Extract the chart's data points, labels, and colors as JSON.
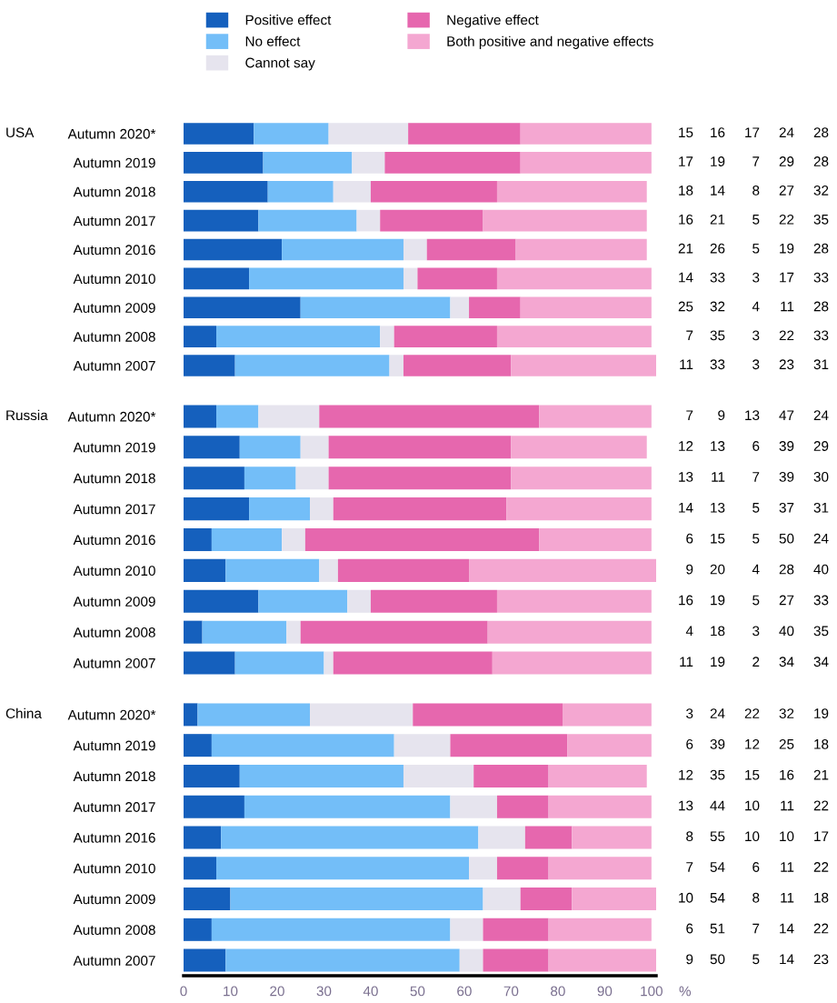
{
  "chart_data": [
    {
      "type": "bar",
      "title": "USA",
      "orientation": "horizontal",
      "stacked": true,
      "data_labels": true,
      "legend": "top",
      "tick_labels": "y",
      "categories": [
        "Autumn 2020*",
        "Autumn 2019",
        "Autumn 2018",
        "Autumn 2017",
        "Autumn 2016",
        "Autumn 2010",
        "Autumn 2009",
        "Autumn 2008",
        "Autumn 2007"
      ],
      "xlim": [
        0,
        101
      ],
      "xticks": [
        0,
        10,
        20,
        30,
        40,
        50,
        60,
        70,
        80,
        90,
        100
      ],
      "series": [
        {
          "name": "Positive effect",
          "color": "#1560bd",
          "values": [
            15,
            17,
            18,
            16,
            21,
            14,
            25,
            7,
            11
          ]
        },
        {
          "name": "No effect",
          "color": "#73bef8",
          "values": [
            16,
            19,
            14,
            21,
            26,
            33,
            32,
            35,
            33
          ]
        },
        {
          "name": "Cannot say",
          "color": "#e6e4ee",
          "values": [
            17,
            7,
            8,
            5,
            5,
            3,
            4,
            3,
            3
          ]
        },
        {
          "name": "Negative effect",
          "color": "#e667ae",
          "values": [
            24,
            29,
            27,
            22,
            19,
            17,
            11,
            22,
            23
          ]
        },
        {
          "name": "Both positive and negative effects",
          "color": "#f4a7d1",
          "values": [
            28,
            28,
            32,
            35,
            28,
            33,
            28,
            33,
            31
          ]
        }
      ]
    },
    {
      "type": "bar",
      "title": "Russia",
      "orientation": "horizontal",
      "stacked": true,
      "data_labels": true,
      "tick_labels": "y",
      "categories": [
        "Autumn 2020*",
        "Autumn 2019",
        "Autumn 2018",
        "Autumn 2017",
        "Autumn 2016",
        "Autumn 2010",
        "Autumn 2009",
        "Autumn 2008",
        "Autumn 2007"
      ],
      "xlim": [
        0,
        101
      ],
      "xticks": [
        0,
        10,
        20,
        30,
        40,
        50,
        60,
        70,
        80,
        90,
        100
      ],
      "series": [
        {
          "color": "#1560bd",
          "values": [
            7,
            12,
            13,
            14,
            6,
            9,
            16,
            4,
            11
          ]
        },
        {
          "color": "#73bef8",
          "values": [
            9,
            13,
            11,
            13,
            15,
            20,
            19,
            18,
            19
          ]
        },
        {
          "color": "#e6e4ee",
          "values": [
            13,
            6,
            7,
            5,
            5,
            4,
            5,
            3,
            2
          ]
        },
        {
          "color": "#e667ae",
          "values": [
            47,
            39,
            39,
            37,
            50,
            28,
            27,
            40,
            34
          ]
        },
        {
          "color": "#f4a7d1",
          "values": [
            24,
            29,
            30,
            31,
            24,
            40,
            33,
            35,
            34
          ]
        }
      ]
    },
    {
      "type": "bar",
      "title": "China",
      "orientation": "horizontal",
      "stacked": true,
      "data_labels": true,
      "xlabel": "%",
      "categories": [
        "Autumn 2020*",
        "Autumn 2019",
        "Autumn 2018",
        "Autumn 2017",
        "Autumn 2016",
        "Autumn 2010",
        "Autumn 2009",
        "Autumn 2008",
        "Autumn 2007"
      ],
      "xlim": [
        0,
        101
      ],
      "xticks": [
        0,
        10,
        20,
        30,
        40,
        50,
        60,
        70,
        80,
        90,
        100
      ],
      "series": [
        {
          "color": "#1560bd",
          "values": [
            3,
            6,
            12,
            13,
            8,
            7,
            10,
            6,
            9
          ]
        },
        {
          "color": "#73bef8",
          "values": [
            24,
            39,
            35,
            44,
            55,
            54,
            54,
            51,
            50
          ]
        },
        {
          "color": "#e6e4ee",
          "values": [
            22,
            12,
            15,
            10,
            10,
            6,
            8,
            7,
            5
          ]
        },
        {
          "color": "#e667ae",
          "values": [
            32,
            25,
            16,
            11,
            10,
            11,
            11,
            14,
            14
          ]
        },
        {
          "color": "#f4a7d1",
          "values": [
            19,
            18,
            21,
            22,
            17,
            22,
            18,
            22,
            23
          ]
        }
      ]
    }
  ]
}
